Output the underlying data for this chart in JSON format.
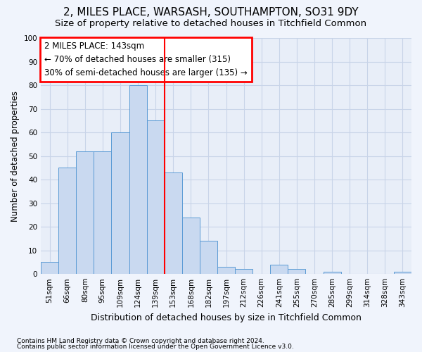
{
  "title1": "2, MILES PLACE, WARSASH, SOUTHAMPTON, SO31 9DY",
  "title2": "Size of property relative to detached houses in Titchfield Common",
  "xlabel": "Distribution of detached houses by size in Titchfield Common",
  "ylabel": "Number of detached properties",
  "footnote1": "Contains HM Land Registry data © Crown copyright and database right 2024.",
  "footnote2": "Contains public sector information licensed under the Open Government Licence v3.0.",
  "bar_labels": [
    "51sqm",
    "66sqm",
    "80sqm",
    "95sqm",
    "109sqm",
    "124sqm",
    "139sqm",
    "153sqm",
    "168sqm",
    "182sqm",
    "197sqm",
    "212sqm",
    "226sqm",
    "241sqm",
    "255sqm",
    "270sqm",
    "285sqm",
    "299sqm",
    "314sqm",
    "328sqm",
    "343sqm"
  ],
  "bar_heights": [
    5,
    45,
    52,
    52,
    60,
    80,
    65,
    43,
    24,
    14,
    3,
    2,
    0,
    4,
    2,
    0,
    1,
    0,
    0,
    0,
    1
  ],
  "bar_color": "#c9d9f0",
  "bar_edge_color": "#5b9bd5",
  "vline_color": "red",
  "annotation_line1": "2 MILES PLACE: 143sqm",
  "annotation_line2": "← 70% of detached houses are smaller (315)",
  "annotation_line3": "30% of semi-detached houses are larger (135) →",
  "ylim": [
    0,
    100
  ],
  "yticks": [
    0,
    10,
    20,
    30,
    40,
    50,
    60,
    70,
    80,
    90,
    100
  ],
  "grid_color": "#c8d4e8",
  "bg_color": "#e8eef8",
  "fig_bg_color": "#f0f4fc",
  "title1_fontsize": 11,
  "title2_fontsize": 9.5,
  "xlabel_fontsize": 9,
  "ylabel_fontsize": 8.5,
  "tick_fontsize": 7.5,
  "annotation_fontsize": 8.5,
  "footnote_fontsize": 6.5
}
